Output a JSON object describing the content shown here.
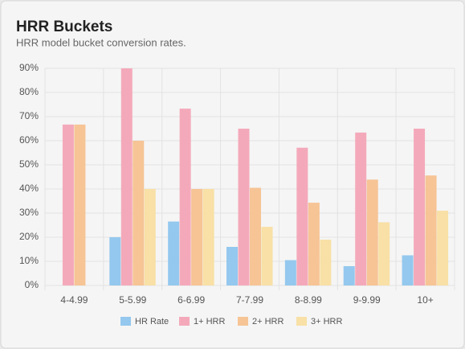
{
  "chart_data": {
    "type": "bar",
    "title": "HRR Buckets",
    "subtitle": "HRR model bucket conversion rates.",
    "categories": [
      "4-4.99",
      "5-5.99",
      "6-6.99",
      "7-7.99",
      "8-8.99",
      "9-9.99",
      "10+"
    ],
    "series": [
      {
        "name": "HR Rate",
        "color": "#94c8ee",
        "values": [
          0,
          20,
          26.5,
          16,
          10.5,
          8,
          12.5
        ]
      },
      {
        "name": "1+ HRR",
        "color": "#f4a9ba",
        "values": [
          66.7,
          90,
          73.3,
          65,
          57.1,
          63.4,
          65
        ]
      },
      {
        "name": "2+ HRR",
        "color": "#f6c495",
        "values": [
          66.7,
          60,
          40,
          40.5,
          34.3,
          43.9,
          45.6
        ]
      },
      {
        "name": "3+ HRR",
        "color": "#f8e0a6",
        "values": [
          null,
          40,
          40,
          24.3,
          19,
          26.2,
          31
        ]
      }
    ],
    "ylim": [
      0,
      90
    ],
    "yticks": [
      {
        "value": 0,
        "label": "0%"
      },
      {
        "value": 10,
        "label": "10%"
      },
      {
        "value": 20,
        "label": "20%"
      },
      {
        "value": 30,
        "label": "30%"
      },
      {
        "value": 40,
        "label": "40%"
      },
      {
        "value": 50,
        "label": "50%"
      },
      {
        "value": 60,
        "label": "60%"
      },
      {
        "value": 70,
        "label": "70%"
      },
      {
        "value": 80,
        "label": "80%"
      },
      {
        "value": 90,
        "label": "90%"
      }
    ],
    "grid": true,
    "legend": "bottom"
  }
}
